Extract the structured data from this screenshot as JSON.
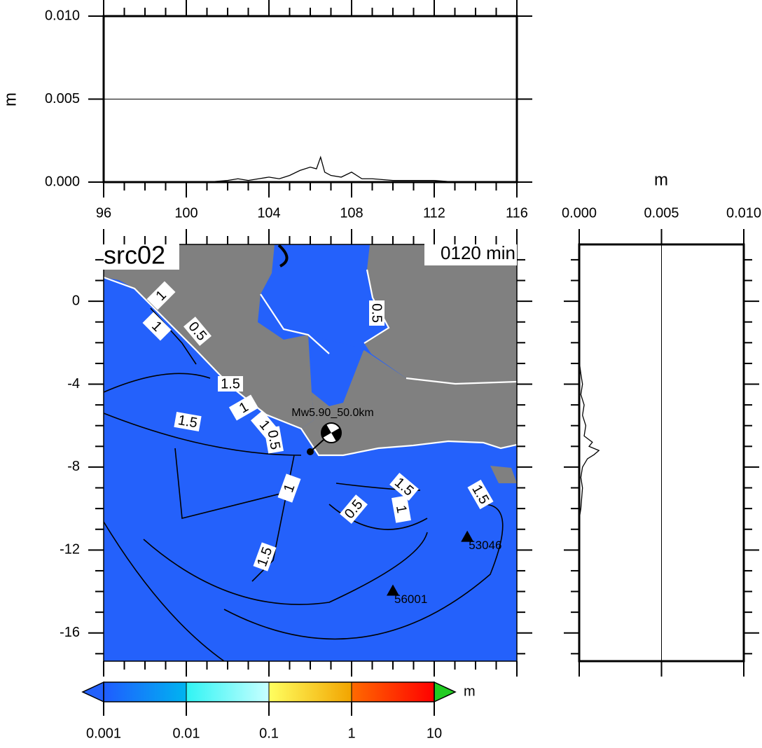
{
  "title": "src02",
  "time_label": "0120 min",
  "top_profile": {
    "ylabel": "m",
    "xlim": [
      96,
      116
    ],
    "xticks": [
      96,
      100,
      104,
      108,
      112,
      116
    ],
    "ylim": [
      0,
      0.01
    ],
    "yticks": [
      {
        "value": 0,
        "label": "0.000"
      },
      {
        "value": 0.005,
        "label": "0.005"
      },
      {
        "value": 0.01,
        "label": "0.010"
      }
    ],
    "x": [
      100,
      101,
      102,
      102.5,
      103,
      103.5,
      104,
      104.5,
      105,
      105.5,
      106,
      106.3,
      106.5,
      106.7,
      107,
      107.5,
      108,
      108.5,
      109,
      110,
      111,
      112,
      113,
      114
    ],
    "values": [
      0,
      0,
      0.0001,
      0.0002,
      0.0001,
      0.0002,
      0.0003,
      0.0002,
      0.0004,
      0.0007,
      0.0009,
      0.0008,
      0.0015,
      0.0006,
      0.0004,
      0.0003,
      0.0006,
      0.0002,
      0.0002,
      0.0001,
      0.0001,
      0.0001,
      0,
      0
    ]
  },
  "side_profile": {
    "xlabel": "m",
    "xlim": [
      0,
      0.01
    ],
    "xticks": [
      {
        "value": 0,
        "label": "0.000"
      },
      {
        "value": 0.005,
        "label": "0.005"
      },
      {
        "value": 0.01,
        "label": "0.010"
      }
    ],
    "lat": [
      -2.9,
      -3.5,
      -4,
      -4.5,
      -5,
      -5.5,
      -6,
      -6.5,
      -6.8,
      -7,
      -7.2,
      -7.4,
      -7.6,
      -8,
      -8.5,
      -9,
      -10,
      -10.5
    ],
    "values": [
      0,
      0.0001,
      0.0002,
      0.0001,
      0.0003,
      0.0002,
      0.0004,
      0.0003,
      0.0008,
      0.0006,
      0.0012,
      0.0009,
      0.0005,
      0.0002,
      0.0001,
      0.0002,
      0.0001,
      0
    ]
  },
  "map": {
    "xlim": [
      96,
      116
    ],
    "xticks": [
      96,
      100,
      104,
      108,
      112,
      116
    ],
    "ylim": [
      -17.36,
      2.74
    ],
    "yticks": [
      0,
      -4,
      -8,
      -12,
      -16
    ],
    "event_label": "Mw5.90_50.0km",
    "epicenter": {
      "lon": 106.0,
      "lat": -7.26
    },
    "stations": [
      {
        "label": "53046",
        "lon": 113.6,
        "lat": -11.4
      },
      {
        "label": "56001",
        "lon": 110.0,
        "lat": -14.0
      }
    ],
    "contour_labels": [
      "1",
      "1",
      "0.5",
      "1.5",
      "1",
      "1.5",
      "1",
      "0.5",
      "1",
      "0.5",
      "1.5",
      "1",
      "1.5",
      "1.5",
      "0.5"
    ]
  },
  "colorbar": {
    "unit": "m",
    "log": true,
    "lim": [
      0.001,
      10
    ],
    "ticks": [
      {
        "value": 0.001,
        "label": "0.001"
      },
      {
        "value": 0.01,
        "label": "0.01"
      },
      {
        "value": 0.1,
        "label": "0.1"
      },
      1,
      10
    ],
    "colors": [
      "#1f5cff",
      "#00b4f0",
      "#30f4f4",
      "#c8ffff",
      "#ffff60",
      "#f2a400",
      "#ff6a00",
      "#ff0000"
    ],
    "under_color": "#2461fb",
    "over_color": "#22cc22"
  }
}
